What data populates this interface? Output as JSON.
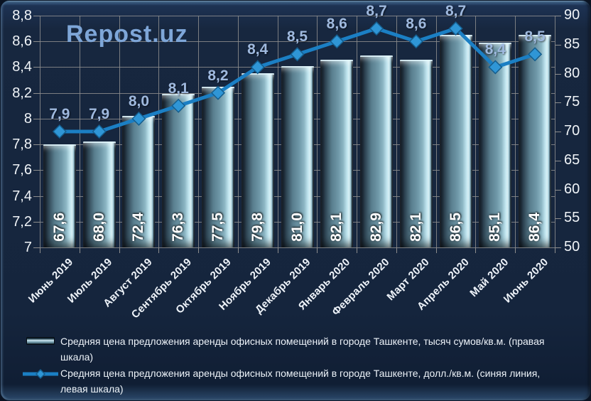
{
  "watermark": "Repost.uz",
  "colors": {
    "background": "#17273f",
    "grid": "#8d8d8d",
    "line": "#1b7fc4",
    "marker_fill": "#2f96d6",
    "marker_stroke": "#155e8e",
    "line_label": "#9fb9de",
    "axis_text": "#f0f4f8",
    "bar_light": "#ddf5fa",
    "bar_mid": "#6f98a8",
    "bar_edge": "#0b121a",
    "watermark": "#7ea6d8"
  },
  "chart_data": {
    "type": "combo-bar-line",
    "title": "",
    "grid": true,
    "legend_position": "bottom",
    "categories": [
      "Июнь 2019",
      "Июль 2019",
      "Август 2019",
      "Сентябрь 2019",
      "Октябрь 2019",
      "Ноябрь 2019",
      "Декабрь 2019",
      "Январь 2020",
      "Февраль 2020",
      "Март 2020",
      "Апрель 2020",
      "Май 2020",
      "Июнь 2020"
    ],
    "series": [
      {
        "name": "Средняя цена предложения аренды офисных помещений в городе Ташкенте, тысяч сумов/кв.м. (правая шкала)",
        "type": "bar",
        "axis": "right",
        "values": [
          67.6,
          68.0,
          72.4,
          76.3,
          77.5,
          79.8,
          81.0,
          82.1,
          82.9,
          82.1,
          86.5,
          85.1,
          86.4
        ],
        "labels": [
          "67,6",
          "68,0",
          "72,4",
          "76,3",
          "77,5",
          "79,8",
          "81,0",
          "82,1",
          "82,9",
          "82,1",
          "86,5",
          "85,1",
          "86,4"
        ]
      },
      {
        "name": "Средняя цена предложения аренды офисных помещений в городе Ташкенте, долл./кв.м. (синяя линия, левая шкала)",
        "type": "line",
        "axis": "left",
        "values": [
          7.9,
          7.9,
          8.0,
          8.1,
          8.2,
          8.4,
          8.5,
          8.6,
          8.7,
          8.6,
          8.7,
          8.4,
          8.5
        ],
        "labels": [
          "7,9",
          "7,9",
          "8,0",
          "8,1",
          "8,2",
          "8,4",
          "8,5",
          "8,6",
          "8,7",
          "8,6",
          "8,7",
          "8,4",
          "8,5"
        ]
      }
    ],
    "left_axis": {
      "min": 7,
      "max": 8.8,
      "step": 0.2,
      "ticks": [
        "7",
        "7,2",
        "7,4",
        "7,6",
        "7,8",
        "8",
        "8,2",
        "8,4",
        "8,6",
        "8,8"
      ]
    },
    "right_axis": {
      "min": 50,
      "max": 90,
      "step": 5,
      "ticks": [
        "50",
        "55",
        "60",
        "65",
        "70",
        "75",
        "80",
        "85",
        "90"
      ]
    }
  },
  "legend": {
    "items": [
      {
        "label": "Средняя цена предложения аренды офисных помещений в городе Ташкенте, тысяч сумов/кв.м. (правая шкала)",
        "marker": "bar"
      },
      {
        "label": "Средняя цена предложения аренды офисных помещений в городе Ташкенте, долл./кв.м. (синяя линия, левая шкала)",
        "marker": "line-diamond"
      }
    ]
  }
}
